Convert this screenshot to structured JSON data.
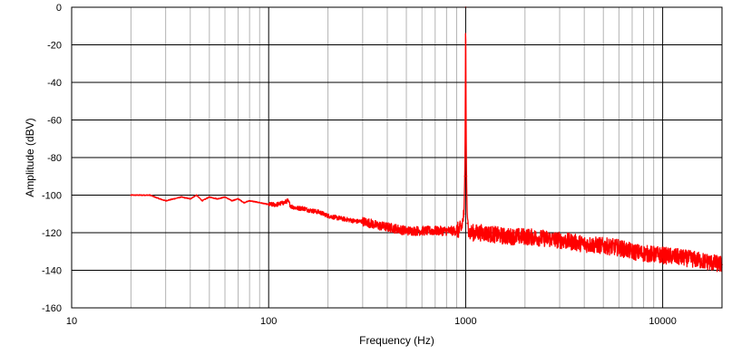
{
  "chart_data": {
    "type": "line",
    "title": "",
    "xlabel": "Frequency (Hz)",
    "ylabel": "Amplitude (dBV)",
    "x_scale": "log",
    "xlim": [
      10,
      20000
    ],
    "ylim": [
      -160,
      0
    ],
    "x_ticks": [
      10,
      100,
      1000,
      10000
    ],
    "x_tick_labels": [
      "10",
      "100",
      "1000",
      "10000"
    ],
    "y_ticks": [
      0,
      -20,
      -40,
      -60,
      -80,
      -100,
      -120,
      -140,
      -160
    ],
    "y_tick_labels": [
      "0",
      "-20",
      "-40",
      "-60",
      "-80",
      "-100",
      "-120",
      "-140",
      "-160"
    ],
    "grid": true,
    "series_color": "#ff0000",
    "series": [
      {
        "x": [
          20,
          22,
          25,
          28,
          30,
          33,
          36,
          40,
          43,
          46,
          50,
          55,
          60,
          65,
          70,
          75,
          80,
          90,
          100,
          110,
          120,
          125,
          130,
          140,
          150,
          160,
          180,
          200,
          220,
          250,
          280,
          300,
          330,
          350,
          400,
          450,
          500,
          550,
          600,
          700,
          800,
          900,
          950,
          980,
          990,
          995,
          1000,
          1005,
          1010,
          1020,
          1050,
          1100,
          1200,
          1400,
          1600,
          1800,
          2000,
          2500,
          3000,
          3500,
          4000,
          5000,
          6000,
          7000,
          8000,
          10000,
          12000,
          14000,
          16000,
          18000,
          20000
        ],
        "y": [
          -100,
          -100,
          -100,
          -102,
          -103,
          -102,
          -101,
          -102,
          -100,
          -103,
          -101,
          -102,
          -101,
          -103,
          -102,
          -104,
          -103,
          -104,
          -105,
          -105,
          -104,
          -103,
          -106,
          -107,
          -107,
          -108,
          -109,
          -111,
          -112,
          -113,
          -114,
          -114,
          -115,
          -116,
          -117,
          -118,
          -119,
          -119,
          -119,
          -119,
          -119,
          -119,
          -118,
          -110,
          -90,
          -60,
          0,
          -60,
          -90,
          -115,
          -120,
          -120,
          -120,
          -121,
          -122,
          -122,
          -122,
          -123,
          -124,
          -125,
          -126,
          -127,
          -128,
          -130,
          -131,
          -132,
          -133,
          -134,
          -135,
          -136,
          -137
        ]
      }
    ]
  }
}
